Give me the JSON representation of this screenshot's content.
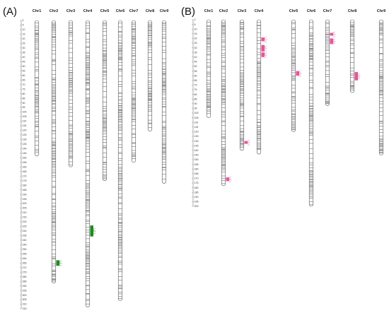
{
  "figure": {
    "panels": [
      {
        "label": "(A)",
        "axis": {
          "max": 315,
          "step": 5
        },
        "chromosomes": [
          {
            "name": "Chr1",
            "length": 148
          },
          {
            "name": "Chr2",
            "length": 287
          },
          {
            "name": "Chr3",
            "length": 160
          },
          {
            "name": "Chr4",
            "length": 313
          },
          {
            "name": "Chr5",
            "length": 175
          },
          {
            "name": "Chr6",
            "length": 306
          },
          {
            "name": "Chr7",
            "length": 155
          },
          {
            "name": "Chr8",
            "length": 121
          },
          {
            "name": "Chr9",
            "length": 178
          }
        ],
        "qtls": [
          {
            "chrom": "Chr2",
            "start": 262,
            "end": 268,
            "label": "1 QTL",
            "color": "#1f8a1f"
          },
          {
            "chrom": "Chr4",
            "start": 224,
            "end": 236,
            "label": "1 QTL",
            "color": "#1f8a1f"
          }
        ]
      },
      {
        "label": "(B)",
        "axis": {
          "max": 200,
          "step": 5
        },
        "chromosomes": [
          {
            "name": "Chr1",
            "length": 105
          },
          {
            "name": "Chr2",
            "length": 178
          },
          {
            "name": "Chr3",
            "length": 140
          },
          {
            "name": "Chr4",
            "length": 144
          },
          {
            "name": "Chr5",
            "length": 120
          },
          {
            "name": "Chr6",
            "length": 200
          },
          {
            "name": "Chr7",
            "length": 92
          },
          {
            "name": "Chr8",
            "length": 78
          },
          {
            "name": "Chr9",
            "length": 145
          }
        ],
        "qtls": [
          {
            "chrom": "Chr2",
            "start": 169,
            "end": 173,
            "label": "1 QTL",
            "color": "#e4579a"
          },
          {
            "chrom": "Chr3",
            "start": 130,
            "end": 133,
            "label": "1 QTL",
            "color": "#e4579a"
          },
          {
            "chrom": "Chr4",
            "start": 19,
            "end": 23,
            "label": "1 QTL",
            "color": "#e4579a"
          },
          {
            "chrom": "Chr4",
            "start": 27,
            "end": 34,
            "label": "2 QTL",
            "color": "#e4579a"
          },
          {
            "chrom": "Chr4",
            "start": 35,
            "end": 40,
            "label": "1 QTL",
            "color": "#e4579a"
          },
          {
            "chrom": "Chr5",
            "start": 55,
            "end": 60,
            "label": "1 QTL",
            "color": "#e4579a"
          },
          {
            "chrom": "Chr7",
            "start": 14,
            "end": 17,
            "label": "1 QTL",
            "color": "#e4579a"
          },
          {
            "chrom": "Chr7",
            "start": 20,
            "end": 26,
            "label": "1 QTL",
            "color": "#e4579a"
          },
          {
            "chrom": "Chr8",
            "start": 56,
            "end": 65,
            "label": "2 QTL",
            "color": "#e4579a"
          }
        ]
      }
    ],
    "colors": {
      "chromosome_outline": "#555555",
      "marker": "#000000",
      "axis": "#777777"
    }
  }
}
